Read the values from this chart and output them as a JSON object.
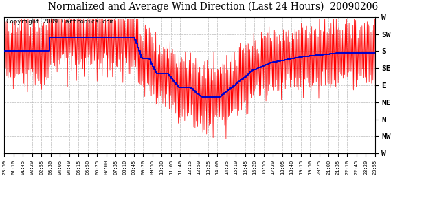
{
  "title": "Normalized and Average Wind Direction (Last 24 Hours)  20090206",
  "copyright": "Copyright 2009 Cartronics.com",
  "ytick_labels": [
    "W",
    "SW",
    "S",
    "SE",
    "E",
    "NE",
    "N",
    "NW",
    "W"
  ],
  "ytick_values": [
    360,
    315,
    270,
    225,
    180,
    135,
    90,
    45,
    0
  ],
  "ylim": [
    0,
    360
  ],
  "background_color": "#ffffff",
  "plot_bg_color": "#ffffff",
  "grid_color": "#bbbbbb",
  "line_color_raw": "#ff0000",
  "line_color_avg": "#0000cc",
  "title_fontsize": 10,
  "copyright_fontsize": 6.5,
  "xtick_labels": [
    "23:59",
    "01:10",
    "01:45",
    "02:20",
    "02:55",
    "03:30",
    "04:05",
    "04:40",
    "05:15",
    "05:50",
    "06:25",
    "07:00",
    "07:35",
    "08:10",
    "08:45",
    "09:20",
    "09:55",
    "10:30",
    "11:05",
    "11:40",
    "12:15",
    "12:50",
    "13:25",
    "14:00",
    "14:35",
    "15:10",
    "15:45",
    "16:20",
    "16:55",
    "17:30",
    "18:05",
    "18:40",
    "19:15",
    "19:50",
    "20:25",
    "21:00",
    "21:35",
    "22:10",
    "22:45",
    "23:20",
    "23:55"
  ]
}
